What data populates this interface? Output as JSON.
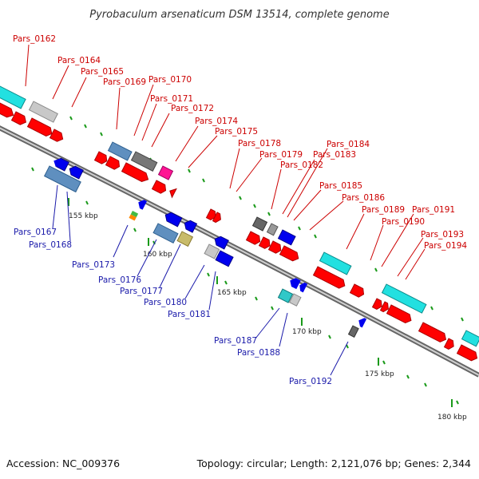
{
  "title": "Pyrobaculum arsenaticum DSM 13514, complete genome",
  "accession": "Accession: NC_009376",
  "topology": "Topology: circular; Length: 2,121,076 bp; Genes: 2,344",
  "kbp_labels": [
    "155 kbp",
    "160 kbp",
    "165 kbp",
    "170 kbp",
    "175 kbp",
    "180 kbp"
  ],
  "forward_labels": [
    "Pars_0162",
    "Pars_0164",
    "Pars_0165",
    "Pars_0169",
    "Pars_0170",
    "Pars_0171",
    "Pars_0172",
    "Pars_0174",
    "Pars_0175",
    "Pars_0178",
    "Pars_0179",
    "Pars_0182",
    "Pars_0183",
    "Pars_0184",
    "Pars_0185",
    "Pars_0186",
    "Pars_0189",
    "Pars_0190",
    "Pars_0191",
    "Pars_0193",
    "Pars_0194"
  ],
  "reverse_labels": [
    "Pars_0167",
    "Pars_0168",
    "Pars_0173",
    "Pars_0176",
    "Pars_0177",
    "Pars_0180",
    "Pars_0181",
    "Pars_0187",
    "Pars_0188",
    "Pars_0192"
  ],
  "colors": {
    "forward_label": "#cc0000",
    "reverse_label": "#1a1aaa",
    "gene_red": "#ff0000",
    "gene_blue": "#0000ee",
    "cyan": "#22e0e0",
    "steel": "#5f8fbf",
    "gray": "#777777",
    "silver": "#c8c8c8",
    "magenta": "#ff1493",
    "khaki": "#c8bb6a",
    "teal": "#30c8c8",
    "tick": "#1a9a1a",
    "backbone": "#888888"
  }
}
